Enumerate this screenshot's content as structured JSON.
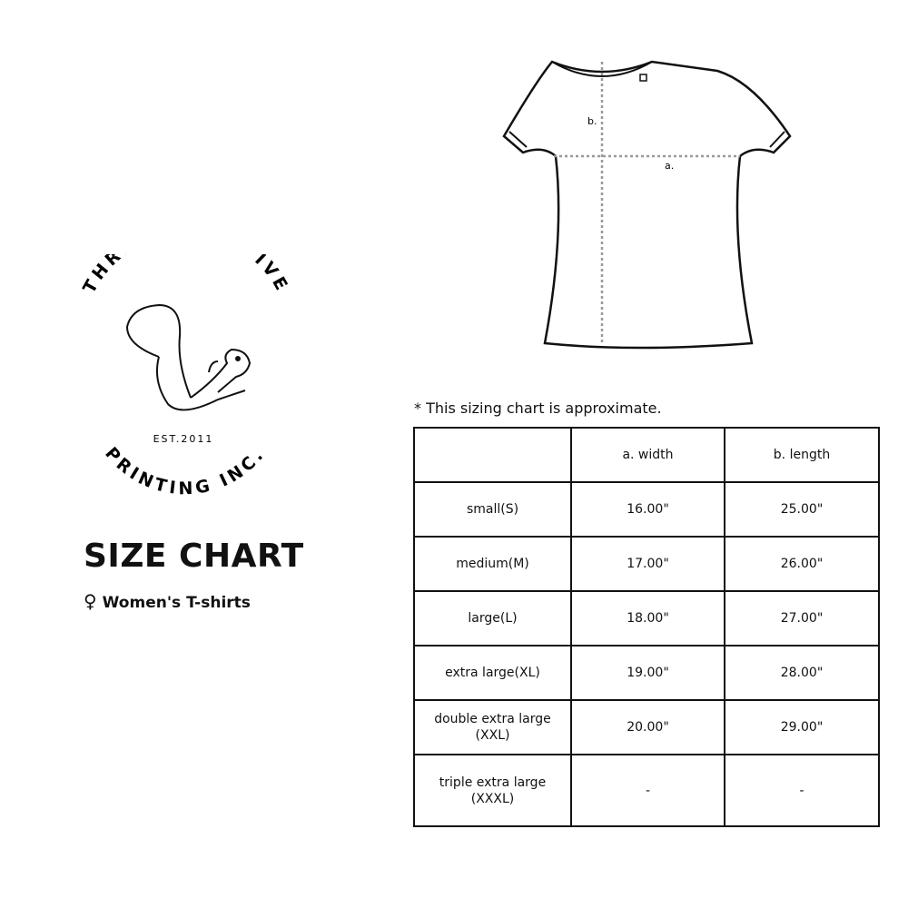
{
  "diagram": {
    "label_a": "a.",
    "label_b": "b."
  },
  "logo": {
    "top_text": "THREE SIXTY FIVE",
    "established": "EST.2011",
    "bottom_text": "PRINTING INC."
  },
  "title": "SIZE CHART",
  "subtitle": {
    "icon": "female-symbol-icon",
    "symbol": "♀",
    "text": "Women's T-shirts"
  },
  "note": "* This sizing chart is approximate.",
  "table": {
    "headers": [
      "",
      "a. width",
      "b. length"
    ],
    "rows": [
      {
        "size": "small(S)",
        "width": "16.00\"",
        "length": "25.00\""
      },
      {
        "size": "medium(M)",
        "width": "17.00\"",
        "length": "26.00\""
      },
      {
        "size": "large(L)",
        "width": "18.00\"",
        "length": "27.00\""
      },
      {
        "size": "extra large(XL)",
        "width": "19.00\"",
        "length": "28.00\""
      },
      {
        "size": "double extra large (XXL)",
        "width": "20.00\"",
        "length": "29.00\""
      },
      {
        "size": "triple extra large (XXXL)",
        "width": "-",
        "length": "-"
      }
    ]
  }
}
